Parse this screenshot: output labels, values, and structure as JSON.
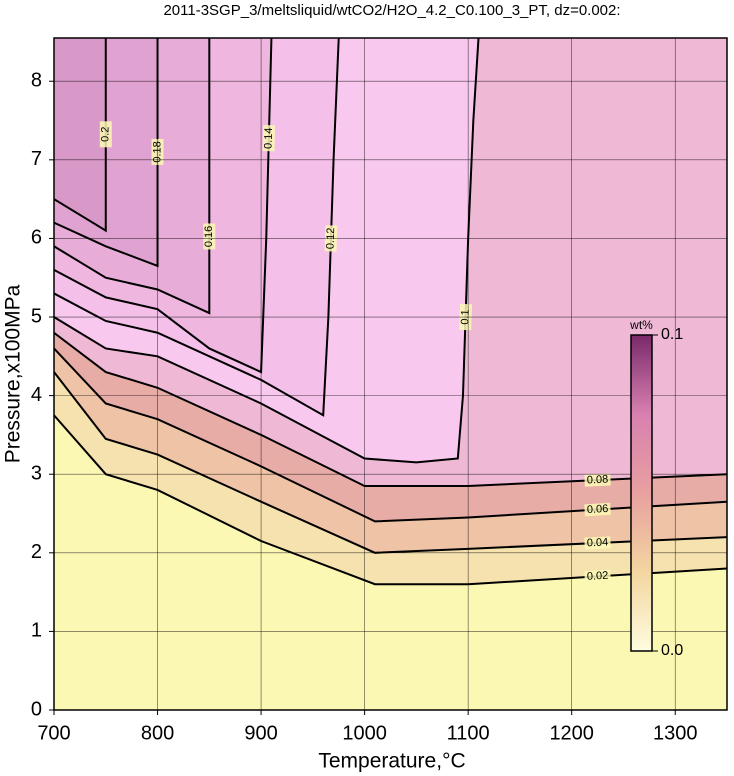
{
  "chart_data": {
    "type": "contour",
    "title": "2011-3SGP_3/meltsliquid/wtCO2/H2O_4.2_C0.100_3_PT, dz=0.002:",
    "xlabel": "Temperature,°C",
    "ylabel": "Pressure,x100MPa",
    "xlim": [
      700,
      1350
    ],
    "ylim": [
      0,
      8.55
    ],
    "xticks": [
      700,
      800,
      900,
      1000,
      1100,
      1200,
      1300
    ],
    "yticks": [
      0,
      1,
      2,
      3,
      4,
      5,
      6,
      7,
      8
    ],
    "grid": true,
    "background_color": "#fbf8b4",
    "contours": [
      {
        "level": 0.02,
        "color": "#f6e2ae",
        "x": [
          700,
          750,
          800,
          900,
          1010,
          1100,
          1350
        ],
        "y": [
          3.75,
          3.0,
          2.8,
          2.15,
          1.6,
          1.6,
          1.8
        ]
      },
      {
        "level": 0.04,
        "color": "#eec3a6",
        "x": [
          700,
          750,
          800,
          900,
          1010,
          1100,
          1350
        ],
        "y": [
          4.3,
          3.45,
          3.25,
          2.65,
          2.0,
          2.05,
          2.2
        ]
      },
      {
        "level": 0.06,
        "color": "#e8aca6",
        "x": [
          700,
          750,
          800,
          900,
          1010,
          1100,
          1350
        ],
        "y": [
          4.6,
          3.9,
          3.7,
          3.1,
          2.4,
          2.45,
          2.65
        ]
      },
      {
        "level": 0.08,
        "color": "#efb9d6",
        "x": [
          700,
          750,
          800,
          900,
          1000,
          1100,
          1350
        ],
        "y": [
          4.8,
          4.3,
          4.1,
          3.5,
          2.85,
          2.85,
          3.0
        ]
      },
      {
        "level": 0.1,
        "color": "#f8c8ee",
        "x": [
          700,
          750,
          800,
          900,
          1000,
          1050,
          1090,
          1095,
          1100,
          1105,
          1110
        ],
        "y": [
          5.0,
          4.6,
          4.5,
          3.9,
          3.2,
          3.15,
          3.2,
          4.0,
          6.0,
          7.5,
          8.55
        ]
      },
      {
        "level": 0.12,
        "color": "#f4bfe8",
        "x": [
          700,
          750,
          800,
          900,
          960,
          965,
          970,
          975
        ],
        "y": [
          5.3,
          4.95,
          4.8,
          4.2,
          3.75,
          5.0,
          7.0,
          8.55
        ]
      },
      {
        "level": 0.14,
        "color": "#efb6e0",
        "x": [
          700,
          750,
          800,
          850,
          900,
          905,
          910
        ],
        "y": [
          5.6,
          5.25,
          5.1,
          4.6,
          4.3,
          6.0,
          8.55
        ]
      },
      {
        "level": 0.16,
        "color": "#e8acd8",
        "x": [
          700,
          750,
          800,
          850,
          850,
          850
        ],
        "y": [
          5.9,
          5.5,
          5.35,
          5.05,
          7.0,
          8.55
        ]
      },
      {
        "level": 0.18,
        "color": "#e0a2d0",
        "x": [
          700,
          750,
          800,
          800
        ],
        "y": [
          6.2,
          5.9,
          5.65,
          8.55
        ]
      },
      {
        "level": 0.2,
        "color": "#d898c8",
        "x": [
          700,
          750,
          750
        ],
        "y": [
          6.5,
          6.1,
          8.55
        ]
      }
    ],
    "colorbar": {
      "title": "wt%",
      "clim": [
        0,
        0.1
      ],
      "ticks": [
        {
          "value": 0,
          "label": "0.0"
        },
        0.1
      ],
      "colors": [
        "#fefce0",
        "#f3d6a0",
        "#e8a0a0",
        "#d880b0",
        "#7a2a6a"
      ]
    }
  }
}
